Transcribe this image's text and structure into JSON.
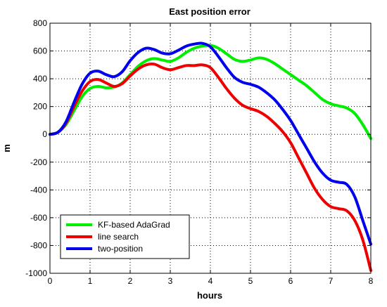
{
  "chart_data": {
    "type": "line",
    "title": "East position error",
    "xlabel": "hours",
    "ylabel": "m",
    "xlim": [
      0,
      8
    ],
    "ylim": [
      -1000,
      800
    ],
    "xticks": [
      0,
      1,
      2,
      3,
      4,
      5,
      6,
      7,
      8
    ],
    "yticks": [
      -1000,
      -800,
      -600,
      -400,
      -200,
      0,
      200,
      400,
      600,
      800
    ],
    "grid": true,
    "legend_position": "bottom-left",
    "series": [
      {
        "name": "KF-based AdaGrad",
        "color": "#00ee00",
        "x": [
          0,
          0.2,
          0.4,
          0.6,
          0.8,
          1.0,
          1.2,
          1.4,
          1.6,
          1.8,
          2.0,
          2.2,
          2.4,
          2.6,
          2.8,
          3.0,
          3.2,
          3.4,
          3.6,
          3.8,
          4.0,
          4.2,
          4.4,
          4.6,
          4.8,
          5.0,
          5.2,
          5.4,
          5.6,
          5.8,
          6.0,
          6.2,
          6.4,
          6.6,
          6.8,
          7.0,
          7.2,
          7.4,
          7.6,
          7.8,
          8.0
        ],
        "values": [
          0,
          15,
          70,
          170,
          270,
          330,
          345,
          335,
          340,
          370,
          430,
          490,
          530,
          545,
          535,
          525,
          550,
          590,
          620,
          635,
          640,
          620,
          580,
          540,
          525,
          535,
          550,
          540,
          510,
          470,
          430,
          390,
          350,
          300,
          250,
          220,
          205,
          190,
          150,
          70,
          -30
        ]
      },
      {
        "name": "line search",
        "color": "#ee0000",
        "x": [
          0,
          0.2,
          0.4,
          0.6,
          0.8,
          1.0,
          1.2,
          1.4,
          1.6,
          1.8,
          2.0,
          2.2,
          2.4,
          2.6,
          2.8,
          3.0,
          3.2,
          3.4,
          3.6,
          3.8,
          4.0,
          4.2,
          4.4,
          4.6,
          4.8,
          5.0,
          5.2,
          5.4,
          5.6,
          5.8,
          6.0,
          6.2,
          6.4,
          6.6,
          6.8,
          7.0,
          7.2,
          7.4,
          7.6,
          7.8,
          8.0
        ],
        "values": [
          0,
          15,
          80,
          200,
          310,
          380,
          395,
          370,
          345,
          365,
          420,
          470,
          500,
          505,
          480,
          465,
          480,
          495,
          495,
          500,
          480,
          410,
          330,
          260,
          210,
          185,
          165,
          130,
          80,
          20,
          -60,
          -170,
          -280,
          -390,
          -470,
          -520,
          -535,
          -550,
          -620,
          -760,
          -980
        ]
      },
      {
        "name": "two-position",
        "color": "#0000ee",
        "x": [
          0,
          0.2,
          0.4,
          0.6,
          0.8,
          1.0,
          1.2,
          1.4,
          1.6,
          1.8,
          2.0,
          2.2,
          2.4,
          2.6,
          2.8,
          3.0,
          3.2,
          3.4,
          3.6,
          3.8,
          4.0,
          4.2,
          4.4,
          4.6,
          4.8,
          5.0,
          5.2,
          5.4,
          5.6,
          5.8,
          6.0,
          6.2,
          6.4,
          6.6,
          6.8,
          7.0,
          7.2,
          7.4,
          7.6,
          7.8,
          8.0
        ],
        "values": [
          0,
          15,
          90,
          230,
          360,
          440,
          455,
          430,
          415,
          450,
          530,
          590,
          620,
          610,
          585,
          580,
          605,
          635,
          650,
          655,
          630,
          560,
          480,
          410,
          375,
          360,
          340,
          300,
          250,
          180,
          100,
          0,
          -100,
          -200,
          -280,
          -330,
          -345,
          -360,
          -450,
          -620,
          -790
        ]
      }
    ]
  }
}
